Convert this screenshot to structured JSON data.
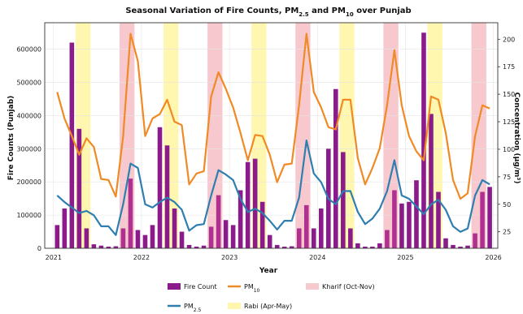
{
  "chart_data": {
    "type": "bar+line",
    "title_parts": [
      "Seasonal Variation of Fire Counts, PM",
      "2.5",
      " and PM",
      "10",
      " over Punjab"
    ],
    "xlabel": "Year",
    "ylabel_left": "Fire Counts (Punjab)",
    "ylabel_right": "Concentration (µg/m³)",
    "x_ticks": [
      "2021",
      "2022",
      "2023",
      "2024",
      "2025",
      "2026"
    ],
    "y_left_ticks": [
      "0",
      "100000",
      "200000",
      "300000",
      "400000",
      "500000",
      "600000"
    ],
    "y_right_ticks": [
      "25",
      "50",
      "75",
      "100",
      "125",
      "150",
      "175",
      "200"
    ],
    "y_left_lim": [
      0,
      680000
    ],
    "y_right_lim": [
      10,
      215
    ],
    "x_lim": [
      2020.9,
      2026.05
    ],
    "grid": true,
    "legend_position": "bottom-center",
    "months_start": "2021-01",
    "fire_count": [
      70000,
      120000,
      620000,
      360000,
      60000,
      12000,
      8000,
      5000,
      6000,
      60000,
      210000,
      55000,
      40000,
      70000,
      365000,
      310000,
      120000,
      50000,
      10000,
      5000,
      8000,
      65000,
      160000,
      85000,
      70000,
      175000,
      260000,
      270000,
      140000,
      40000,
      10000,
      5000,
      6000,
      60000,
      130000,
      60000,
      120000,
      300000,
      480000,
      290000,
      60000,
      15000,
      5000,
      5000,
      15000,
      55000,
      175000,
      135000,
      140000,
      205000,
      650000,
      405000,
      170000,
      30000,
      10000,
      5000,
      8000,
      45000,
      170000,
      185000
    ],
    "pm25": [
      58,
      52,
      47,
      42,
      44,
      40,
      30,
      30,
      22,
      50,
      87,
      83,
      50,
      47,
      52,
      56,
      52,
      45,
      26,
      31,
      32,
      58,
      81,
      77,
      72,
      55,
      43,
      46,
      42,
      35,
      27,
      35,
      35,
      56,
      108,
      78,
      70,
      55,
      50,
      62,
      62,
      43,
      32,
      37,
      46,
      62,
      90,
      58,
      55,
      48,
      41,
      50,
      54,
      45,
      30,
      25,
      28,
      58,
      72,
      68
    ],
    "pm10": [
      152,
      128,
      112,
      95,
      110,
      102,
      73,
      72,
      57,
      112,
      205,
      180,
      112,
      128,
      132,
      145,
      125,
      122,
      68,
      78,
      80,
      148,
      170,
      155,
      138,
      115,
      90,
      113,
      112,
      95,
      70,
      86,
      87,
      140,
      205,
      152,
      138,
      120,
      118,
      145,
      145,
      92,
      68,
      83,
      101,
      140,
      190,
      140,
      112,
      98,
      90,
      148,
      145,
      115,
      72,
      55,
      60,
      112,
      140,
      137
    ],
    "rabi_shading": [
      [
        2021.25,
        2021.42
      ],
      [
        2022.25,
        2022.42
      ],
      [
        2023.25,
        2023.42
      ],
      [
        2024.25,
        2024.42
      ],
      [
        2025.25,
        2025.42
      ]
    ],
    "kharif_shading": [
      [
        2021.75,
        2021.92
      ],
      [
        2022.75,
        2022.92
      ],
      [
        2023.75,
        2023.92
      ],
      [
        2024.75,
        2024.92
      ],
      [
        2025.75,
        2025.92
      ]
    ],
    "colors": {
      "fire_bars": "#8b1a8b",
      "fire_bars_kharif": "#b03090",
      "pm25": "#2e7fb0",
      "pm10": "#f08a24",
      "rabi": "#fff7b0",
      "kharif": "#f7c9cf",
      "grid": "#e4e4e4"
    }
  },
  "legend": {
    "fire": "Fire Count",
    "pm25_base": "PM",
    "pm25_sub": "2.5",
    "pm10_base": "PM",
    "pm10_sub": "10",
    "rabi": "Rabi (Apr-May)",
    "kharif": "Kharif (Oct-Nov)"
  }
}
